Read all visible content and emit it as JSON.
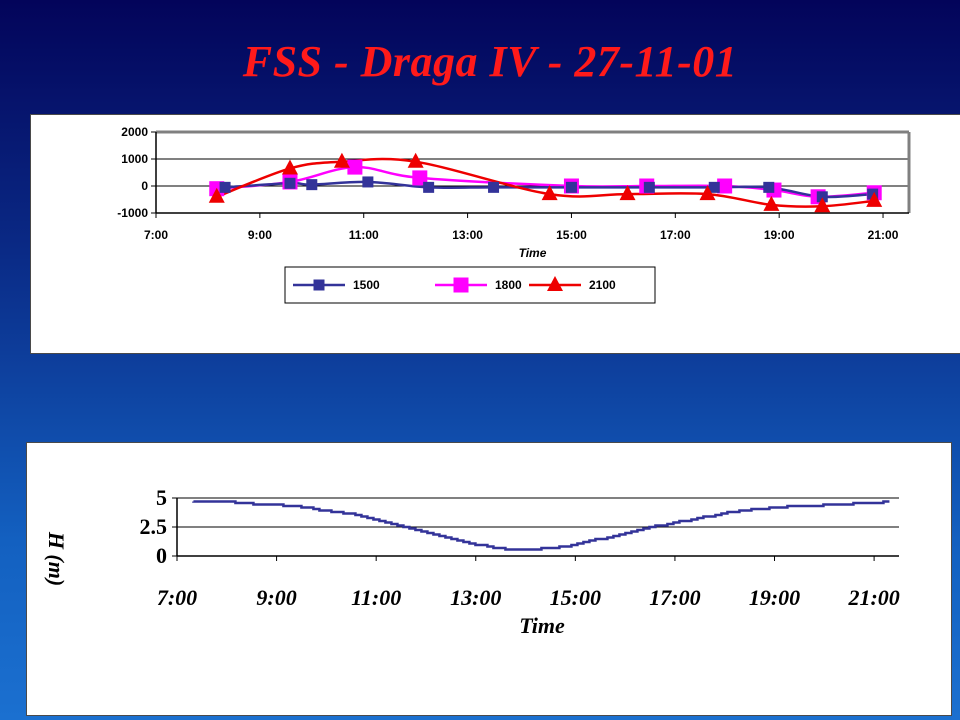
{
  "slide": {
    "title": "FSS - Draga IV - 27-11-01",
    "colors": {
      "title": "#ff1a1a",
      "background_top": "#03045a",
      "background_bottom": "#1b70d0"
    }
  },
  "chart_data": [
    {
      "type": "line",
      "xlabel": "Time",
      "ylabel": "",
      "ylim": [
        -1000,
        2000
      ],
      "yticks": [
        "2000",
        "1000",
        "0",
        "-1000"
      ],
      "xticks": [
        "7:00",
        "9:00",
        "11:00",
        "13:00",
        "15:00",
        "17:00",
        "19:00",
        "21:00"
      ],
      "xlim_hours": [
        7,
        21.5
      ],
      "grid": "horizontal major gridlines",
      "legend": "bottom-center",
      "series": [
        {
          "name": "1500",
          "color": "#333399",
          "marker": "square-small",
          "x": [
            8.33,
            9.58,
            10.0,
            11.08,
            12.25,
            13.5,
            15.0,
            16.5,
            17.75,
            18.8,
            19.83,
            20.8
          ],
          "y": [
            -50,
            100,
            50,
            150,
            -50,
            -50,
            -50,
            -50,
            -50,
            -50,
            -400,
            -300
          ]
        },
        {
          "name": "1800",
          "color": "#ff00ff",
          "marker": "square-large",
          "x": [
            8.17,
            9.58,
            10.83,
            12.08,
            15.0,
            16.45,
            17.95,
            18.9,
            19.75,
            20.83
          ],
          "y": [
            -100,
            150,
            700,
            300,
            0,
            0,
            0,
            -150,
            -400,
            -250
          ]
        },
        {
          "name": "2100",
          "color": "#ee0000",
          "marker": "triangle",
          "x": [
            8.17,
            9.58,
            10.58,
            12.0,
            14.58,
            16.08,
            17.62,
            18.85,
            19.83,
            20.83
          ],
          "y": [
            -400,
            650,
            900,
            900,
            -300,
            -300,
            -300,
            -700,
            -750,
            -550
          ]
        }
      ]
    },
    {
      "type": "line",
      "xlabel": "Time",
      "ylabel": "H (m)",
      "ylim": [
        0,
        5
      ],
      "yticks": [
        "5",
        "2.5",
        "0"
      ],
      "xticks": [
        "7:00",
        "9:00",
        "11:00",
        "13:00",
        "15:00",
        "17:00",
        "19:00",
        "21:00"
      ],
      "xlim_hours": [
        7,
        21.5
      ],
      "grid": "horizontal major gridlines",
      "series": [
        {
          "name": "",
          "color": "#333399",
          "x": [
            7.33,
            8.0,
            8.5,
            9.0,
            9.5,
            10.0,
            10.5,
            11.0,
            11.5,
            12.0,
            12.5,
            13.0,
            13.5,
            13.75,
            14.0,
            14.5,
            15.0,
            15.5,
            16.0,
            16.5,
            17.0,
            17.5,
            18.0,
            18.5,
            19.0,
            19.5,
            20.0,
            20.5,
            21.0,
            21.33
          ],
          "y": [
            4.7,
            4.7,
            4.5,
            4.4,
            4.2,
            3.9,
            3.6,
            3.1,
            2.6,
            2.0,
            1.5,
            1.0,
            0.65,
            0.55,
            0.5,
            0.7,
            1.0,
            1.5,
            2.0,
            2.5,
            2.9,
            3.3,
            3.7,
            4.0,
            4.2,
            4.3,
            4.4,
            4.5,
            4.6,
            4.7
          ]
        }
      ]
    }
  ]
}
